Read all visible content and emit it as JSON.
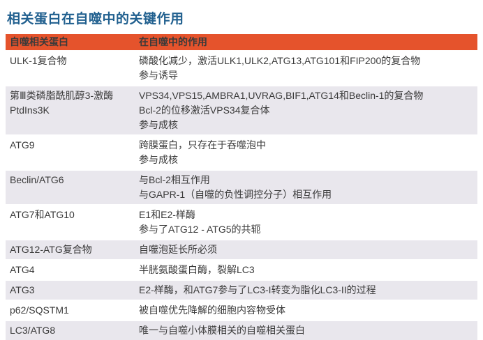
{
  "title": "相关蛋白在自噬中的关键作用",
  "colors": {
    "header_bg": "#e5532c",
    "title": "#21608f",
    "row_alt": "#e9e7ed",
    "text": "#3a3a3a"
  },
  "table": {
    "headers": [
      "自噬相关蛋白",
      "在自噬中的作用"
    ],
    "rows": [
      {
        "protein": "ULK-1复合物",
        "role": "磷酸化减少，激活ULK1,ULK2,ATG13,ATG101和FIP200的复合物\n参与诱导"
      },
      {
        "protein": "第Ⅲ类磷脂酰肌醇3-激酶\nPtdIns3K",
        "role": "VPS34,VPS15,AMBRA1,UVRAG,BIF1,ATG14和Beclin-1的复合物\nBcl-2的位移激活VPS34复合体\n参与成核"
      },
      {
        "protein": "ATG9",
        "role": "跨膜蛋白，只存在于吞噬泡中\n参与成核"
      },
      {
        "protein": "Beclin/ATG6",
        "role": "与Bcl-2相互作用\n与GAPR-1（自噬的负性调控分子）相互作用"
      },
      {
        "protein": "ATG7和ATG10",
        "role": "E1和E2-样酶\n参与了ATG12 - ATG5的共轭"
      },
      {
        "protein": "ATG12-ATG复合物",
        "role": "自噬泡延长所必须"
      },
      {
        "protein": "ATG4",
        "role": "半胱氨酸蛋白酶，裂解LC3"
      },
      {
        "protein": "ATG3",
        "role": "E2-样酶，和ATG7参与了LC3-I转变为脂化LC3-II的过程"
      },
      {
        "protein": "p62/SQSTM1",
        "role": "被自噬优先降解的细胞内容物受体"
      },
      {
        "protein": "LC3/ATG8",
        "role": "唯一与自噬小体膜相关的自噬相关蛋白"
      }
    ]
  }
}
